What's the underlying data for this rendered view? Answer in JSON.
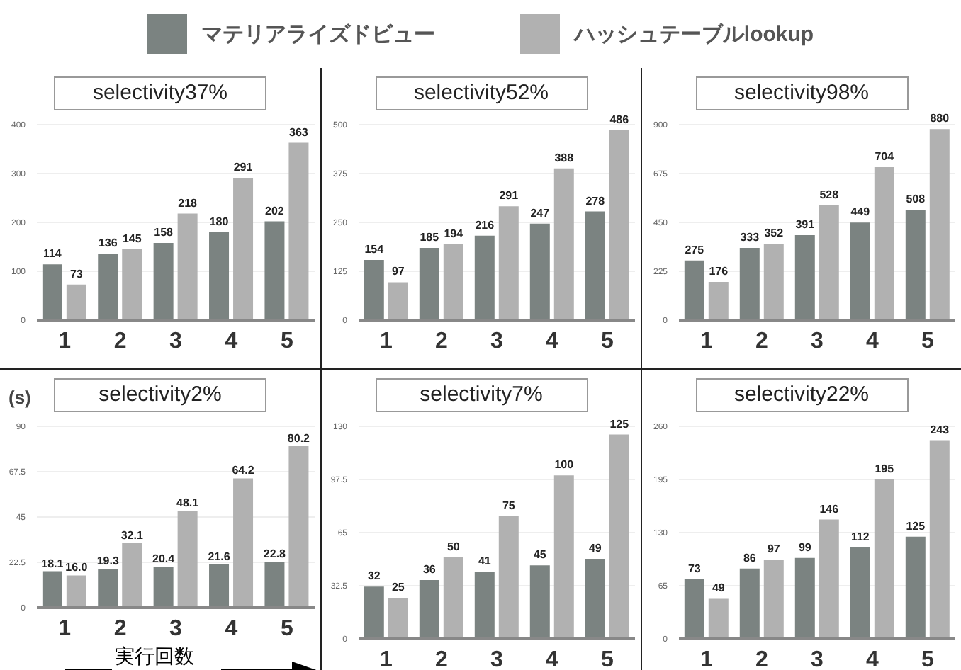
{
  "chart_data": [
    {
      "type": "bar",
      "title": "selectivity37%",
      "categories": [
        "1",
        "2",
        "3",
        "4",
        "5"
      ],
      "legend": "top",
      "grid": "y",
      "data_labels": true,
      "ylim": [
        0,
        400
      ],
      "yticks": [
        0,
        100,
        200,
        300,
        400
      ],
      "series": [
        {
          "name": "マテリアライズドビュー",
          "color": "#7b8381",
          "values": [
            114,
            136,
            158,
            180,
            202
          ]
        },
        {
          "name": "ハッシュテーブルlookup",
          "color": "#b1b1b1",
          "values": [
            73,
            145,
            218,
            291,
            363
          ]
        }
      ]
    },
    {
      "type": "bar",
      "title": "selectivity52%",
      "categories": [
        "1",
        "2",
        "3",
        "4",
        "5"
      ],
      "grid": "y",
      "data_labels": true,
      "ylim": [
        0,
        500
      ],
      "yticks": [
        0,
        125,
        250,
        375,
        500
      ],
      "series": [
        {
          "color": "#7b8381",
          "values": [
            154,
            185,
            216,
            247,
            278
          ]
        },
        {
          "color": "#b1b1b1",
          "values": [
            97,
            194,
            291,
            388,
            486
          ]
        }
      ]
    },
    {
      "type": "bar",
      "title": "selectivity98%",
      "categories": [
        "1",
        "2",
        "3",
        "4",
        "5"
      ],
      "grid": "y",
      "data_labels": true,
      "ylim": [
        0,
        900
      ],
      "yticks": [
        0,
        225,
        450,
        675,
        900
      ],
      "series": [
        {
          "color": "#7b8381",
          "values": [
            275,
            333,
            391,
            449,
            508
          ]
        },
        {
          "color": "#b1b1b1",
          "values": [
            176,
            352,
            528,
            704,
            880
          ]
        }
      ]
    },
    {
      "type": "bar",
      "title": "selectivity2%",
      "ylabel": "(s)",
      "xlabel": "実行回数",
      "categories": [
        "1",
        "2",
        "3",
        "4",
        "5"
      ],
      "grid": "y",
      "ylim": [
        0,
        90
      ],
      "yticks": [
        0,
        22.5,
        45,
        67.5,
        90
      ],
      "series": [
        {
          "color": "#7b8381",
          "values": [
            18.1,
            19.3,
            20.4,
            21.6,
            22.8
          ],
          "value_labels": [
            "18.1",
            "19.3",
            "20.4",
            "21.6",
            "22.8"
          ]
        },
        {
          "color": "#b1b1b1",
          "values": [
            16.0,
            32.1,
            48.1,
            64.2,
            80.2
          ],
          "value_labels": [
            "16.0",
            "32.1",
            "48.1",
            "64.2",
            "80.2"
          ]
        }
      ]
    },
    {
      "type": "bar",
      "title": "selectivity7%",
      "categories": [
        "1",
        "2",
        "3",
        "4",
        "5"
      ],
      "grid": "y",
      "data_labels": true,
      "ylim": [
        0,
        130
      ],
      "yticks": [
        0,
        32.5,
        65,
        97.5,
        130
      ],
      "series": [
        {
          "color": "#7b8381",
          "values": [
            32,
            36,
            41,
            45,
            49
          ]
        },
        {
          "color": "#b1b1b1",
          "values": [
            25,
            50,
            75,
            100,
            125
          ]
        }
      ]
    },
    {
      "type": "bar",
      "title": "selectivity22%",
      "categories": [
        "1",
        "2",
        "3",
        "4",
        "5"
      ],
      "grid": "y",
      "data_labels": true,
      "ylim": [
        0,
        260
      ],
      "yticks": [
        0,
        65,
        130,
        195,
        260
      ],
      "series": [
        {
          "color": "#7b8381",
          "values": [
            73,
            86,
            99,
            112,
            125
          ]
        },
        {
          "color": "#b1b1b1",
          "values": [
            49,
            97,
            146,
            195,
            243
          ]
        }
      ]
    }
  ]
}
